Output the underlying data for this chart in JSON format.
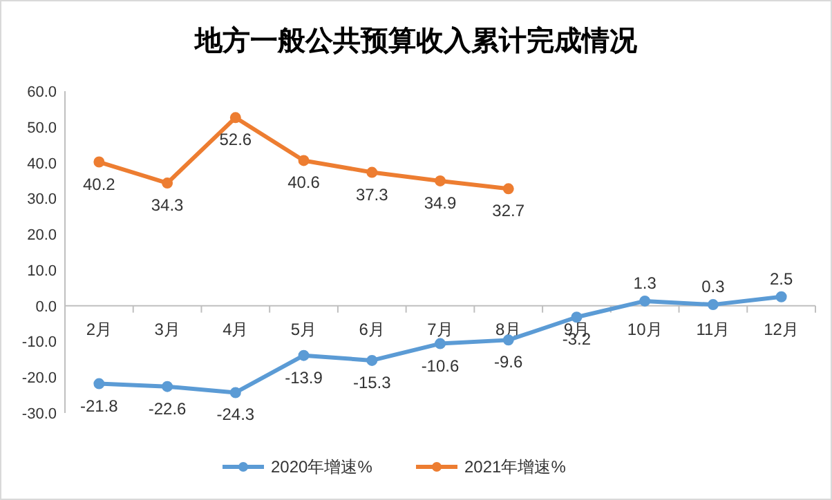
{
  "chart_data": {
    "type": "line",
    "title": "地方一般公共预算收入累计完成情况",
    "categories": [
      "2月",
      "3月",
      "4月",
      "5月",
      "6月",
      "7月",
      "8月",
      "9月",
      "10月",
      "11月",
      "12月"
    ],
    "series": [
      {
        "name": "2020年增速%",
        "color": "#5b9bd5",
        "values": [
          -21.8,
          -22.6,
          -24.3,
          -13.9,
          -15.3,
          -10.6,
          -9.6,
          -3.2,
          1.3,
          0.3,
          2.5
        ]
      },
      {
        "name": "2021年增速%",
        "color": "#ed7d31",
        "values": [
          40.2,
          34.3,
          52.6,
          40.6,
          37.3,
          34.9,
          32.7,
          null,
          null,
          null,
          null
        ]
      }
    ],
    "ylim": [
      -30,
      60
    ],
    "yticks": [
      {
        "value": -30,
        "label": "-30.0"
      },
      {
        "value": -20,
        "label": "-20.0"
      },
      {
        "value": -10,
        "label": "-10.0"
      },
      {
        "value": 0,
        "label": "0.0"
      },
      {
        "value": 10,
        "label": "10.0"
      },
      {
        "value": 20,
        "label": "20.0"
      },
      {
        "value": 30,
        "label": "30.0"
      },
      {
        "value": 40,
        "label": "40.0"
      },
      {
        "value": 50,
        "label": "50.0"
      },
      {
        "value": 60,
        "label": "60.0"
      }
    ],
    "marker": "circle",
    "data_labels": true,
    "legend": "bottom",
    "grid": false
  }
}
